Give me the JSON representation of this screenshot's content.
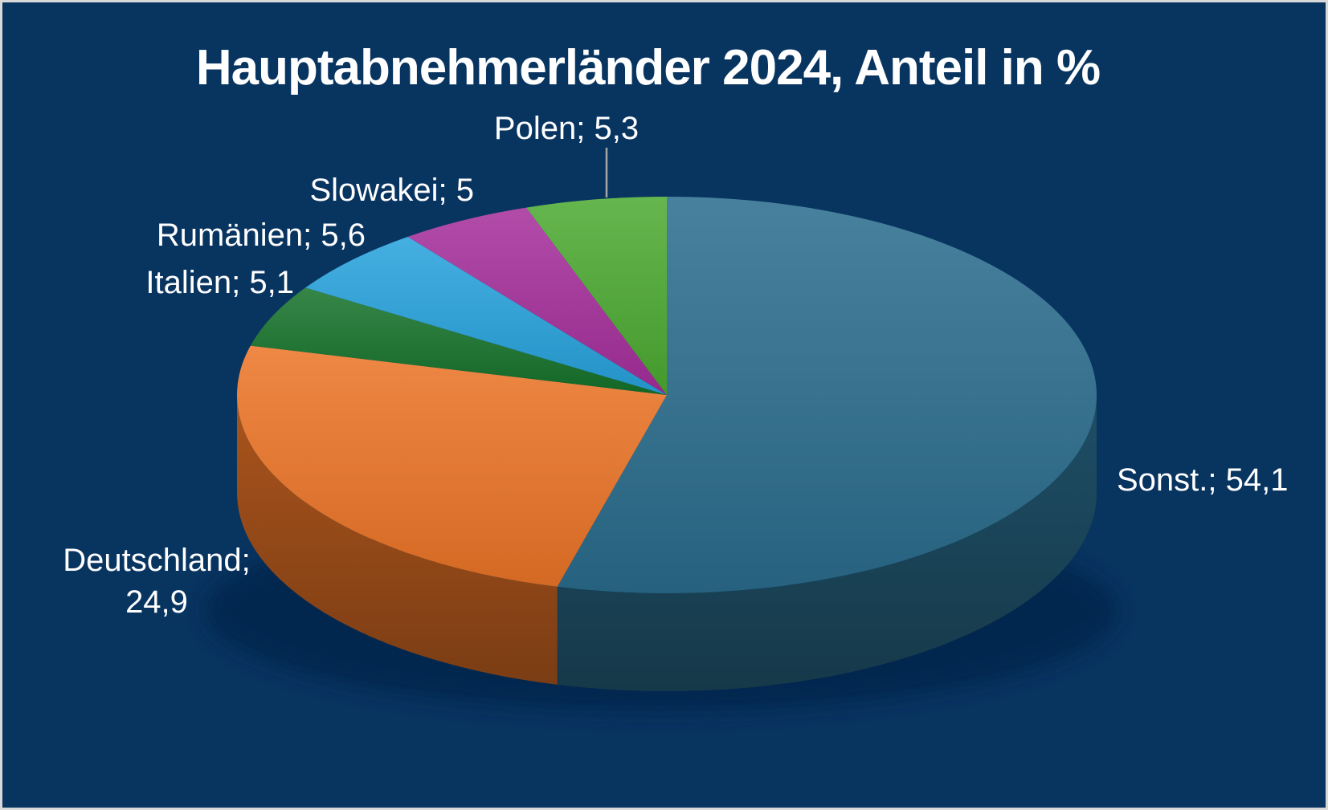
{
  "colors": {
    "background": "#083460",
    "frame-border": "#D9D9D9",
    "text": "#FFFFFF",
    "leader-line": "#A6A6A6",
    "shadow": "#04234A"
  },
  "chart_data": {
    "type": "pie",
    "title": "Hauptabnehmerländer 2024, Anteil in %",
    "unit": "%",
    "effect": "3d",
    "direction": "clockwise",
    "start_angle_deg": 0,
    "legend": "none",
    "value_decimal_separator": ",",
    "label_value_separator": "; ",
    "series": [
      {
        "label": "Sonst.",
        "value": 54.1,
        "color": "#2A6D8D"
      },
      {
        "label": "Deutschland",
        "value": 24.9,
        "color": "#EC7527"
      },
      {
        "label": "Italien",
        "value": 5.1,
        "color": "#15722A"
      },
      {
        "label": "Rumänien",
        "value": 5.6,
        "color": "#27A2DC"
      },
      {
        "label": "Slowakei",
        "value": 5,
        "color": "#A52F9B"
      },
      {
        "label": "Polen",
        "value": 5.3,
        "color": "#4CAA31"
      }
    ]
  }
}
